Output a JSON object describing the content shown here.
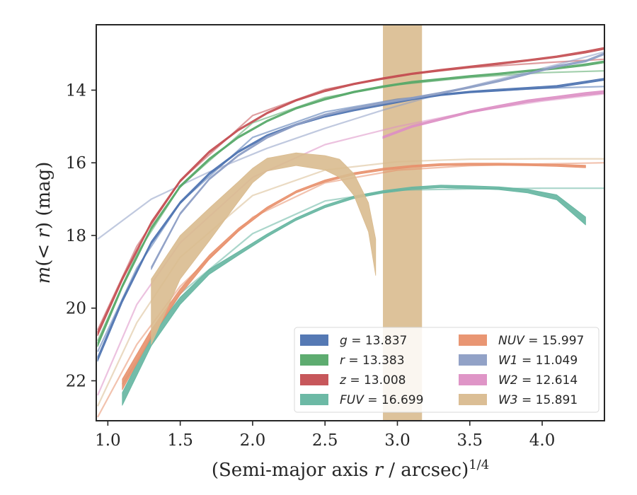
{
  "chart_data": {
    "type": "line",
    "xlabel": "(Semi-major axis r / arcsec)^1/4",
    "ylabel": "m(< r) (mag)",
    "xlim": [
      0.92,
      4.43
    ],
    "ylim": [
      23.1,
      12.2
    ],
    "y_inverted": true,
    "grid": false,
    "legend_position": "lower-right",
    "x_ticks": [
      "1.0",
      "1.5",
      "2.0",
      "2.5",
      "3.0",
      "3.5",
      "4.0"
    ],
    "y_ticks": [
      "14",
      "16",
      "18",
      "20",
      "22"
    ],
    "series": [
      {
        "name": "g = 13.837",
        "color": "#4c72b0",
        "x": [
          0.93,
          1.1,
          1.3,
          1.5,
          1.7,
          1.9,
          2.1,
          2.3,
          2.5,
          2.7,
          2.9,
          3.1,
          3.3,
          3.5,
          3.7,
          3.9,
          4.1,
          4.3,
          4.43
        ],
        "y": [
          21.4,
          19.8,
          18.2,
          17.1,
          16.3,
          15.7,
          15.25,
          14.95,
          14.72,
          14.55,
          14.4,
          14.25,
          14.13,
          14.05,
          14.0,
          13.95,
          13.9,
          13.78,
          13.7
        ],
        "width": [
          0.13,
          0.1,
          0.08,
          0.07,
          0.06,
          0.05,
          0.05,
          0.05,
          0.05,
          0.05,
          0.05,
          0.05,
          0.05,
          0.05,
          0.06,
          0.06,
          0.06,
          0.06,
          0.06
        ],
        "model_x": [
          0.93,
          1.2,
          1.5,
          2.0,
          2.5,
          3.0,
          3.5,
          4.0,
          4.43
        ],
        "model_y": [
          21.2,
          18.9,
          17.1,
          15.3,
          14.6,
          14.25,
          14.05,
          13.95,
          13.9
        ]
      },
      {
        "name": "r = 13.383",
        "color": "#55a868",
        "x": [
          0.93,
          1.1,
          1.3,
          1.5,
          1.7,
          1.9,
          2.1,
          2.3,
          2.5,
          2.7,
          2.9,
          3.1,
          3.3,
          3.5,
          3.7,
          3.9,
          4.1,
          4.3,
          4.43
        ],
        "y": [
          21.0,
          19.4,
          17.8,
          16.65,
          15.9,
          15.3,
          14.85,
          14.5,
          14.25,
          14.05,
          13.9,
          13.78,
          13.7,
          13.62,
          13.55,
          13.47,
          13.4,
          13.3,
          13.22
        ],
        "width": [
          0.12,
          0.1,
          0.08,
          0.07,
          0.06,
          0.05,
          0.05,
          0.05,
          0.05,
          0.05,
          0.05,
          0.05,
          0.05,
          0.05,
          0.05,
          0.05,
          0.05,
          0.06,
          0.06
        ],
        "model_x": [
          0.93,
          1.2,
          1.5,
          2.0,
          2.5,
          3.0,
          3.5,
          4.0,
          4.43
        ],
        "model_y": [
          20.9,
          18.5,
          16.65,
          14.9,
          14.2,
          13.85,
          13.65,
          13.52,
          13.47
        ]
      },
      {
        "name": "z = 13.008",
        "color": "#c44e52",
        "x": [
          0.93,
          1.1,
          1.3,
          1.5,
          1.7,
          1.9,
          2.1,
          2.3,
          2.5,
          2.7,
          2.9,
          3.1,
          3.3,
          3.5,
          3.7,
          3.9,
          4.1,
          4.3,
          4.43
        ],
        "y": [
          20.7,
          19.2,
          17.65,
          16.5,
          15.7,
          15.1,
          14.63,
          14.28,
          14.02,
          13.83,
          13.68,
          13.55,
          13.45,
          13.36,
          13.27,
          13.18,
          13.08,
          12.95,
          12.85
        ],
        "width": [
          0.12,
          0.1,
          0.08,
          0.07,
          0.06,
          0.05,
          0.05,
          0.05,
          0.05,
          0.05,
          0.05,
          0.05,
          0.05,
          0.05,
          0.05,
          0.05,
          0.05,
          0.06,
          0.06
        ],
        "model_x": [
          0.93,
          1.2,
          1.5,
          2.0,
          2.5,
          3.0,
          3.5,
          4.0,
          4.43
        ],
        "model_y": [
          20.6,
          18.3,
          16.5,
          14.7,
          13.98,
          13.6,
          13.38,
          13.25,
          13.15
        ]
      },
      {
        "name": "FUV = 16.699",
        "color": "#64b5a0",
        "x": [
          1.1,
          1.3,
          1.5,
          1.7,
          1.9,
          2.1,
          2.3,
          2.5,
          2.7,
          2.9,
          3.1,
          3.3,
          3.5,
          3.7,
          3.9,
          4.1,
          4.3
        ],
        "y": [
          22.5,
          20.9,
          19.8,
          19.0,
          18.5,
          18.0,
          17.55,
          17.2,
          16.95,
          16.8,
          16.7,
          16.65,
          16.67,
          16.7,
          16.78,
          16.95,
          17.6
        ],
        "width": [
          0.35,
          0.28,
          0.2,
          0.14,
          0.1,
          0.08,
          0.07,
          0.07,
          0.07,
          0.07,
          0.07,
          0.07,
          0.08,
          0.08,
          0.1,
          0.14,
          0.22
        ],
        "model_x": [
          1.1,
          1.5,
          2.0,
          2.5,
          3.0,
          3.5,
          4.0,
          4.43
        ],
        "model_y": [
          22.1,
          19.6,
          17.95,
          17.05,
          16.75,
          16.72,
          16.7,
          16.7
        ]
      },
      {
        "name": "NUV = 15.997",
        "color": "#e8906c",
        "x": [
          1.1,
          1.3,
          1.5,
          1.7,
          1.9,
          2.1,
          2.3,
          2.5,
          2.7,
          2.9,
          3.1,
          3.3,
          3.5,
          3.7,
          3.9,
          4.1,
          4.3
        ],
        "y": [
          22.1,
          20.7,
          19.55,
          18.6,
          17.85,
          17.25,
          16.8,
          16.5,
          16.3,
          16.18,
          16.1,
          16.05,
          16.04,
          16.04,
          16.05,
          16.07,
          16.1
        ],
        "width": [
          0.3,
          0.22,
          0.16,
          0.12,
          0.09,
          0.07,
          0.06,
          0.06,
          0.06,
          0.06,
          0.06,
          0.06,
          0.06,
          0.06,
          0.06,
          0.06,
          0.07
        ],
        "model_x": [
          0.93,
          1.2,
          1.5,
          2.0,
          2.5,
          3.0,
          3.5,
          4.0,
          4.43
        ],
        "model_y": [
          23.0,
          21.0,
          19.4,
          17.5,
          16.55,
          16.2,
          16.08,
          16.03,
          16.0
        ]
      },
      {
        "name": "W1 = 11.049",
        "color": "#8c9dc4",
        "x": [
          1.3,
          1.5,
          1.7,
          1.9,
          2.1,
          2.3,
          2.5,
          2.7,
          2.9,
          3.1,
          3.3,
          3.5,
          3.7,
          3.9,
          4.1,
          4.3,
          4.43
        ],
        "y": [
          18.9,
          17.4,
          16.45,
          15.8,
          15.3,
          14.95,
          14.68,
          14.5,
          14.35,
          14.22,
          14.08,
          13.92,
          13.75,
          13.55,
          13.35,
          13.2,
          13.0
        ],
        "width": [
          0.08,
          0.06,
          0.05,
          0.05,
          0.05,
          0.05,
          0.05,
          0.05,
          0.05,
          0.05,
          0.05,
          0.05,
          0.05,
          0.05,
          0.05,
          0.05,
          0.05
        ],
        "model_x": [
          0.93,
          1.3,
          1.7,
          2.1,
          2.5,
          2.9,
          3.3,
          3.7,
          4.1,
          4.43
        ],
        "model_y": [
          18.1,
          17.0,
          16.25,
          15.6,
          15.05,
          14.55,
          14.1,
          13.7,
          13.3,
          12.95
        ]
      },
      {
        "name": "W2 = 12.614",
        "color": "#dd8fc4",
        "x": [
          2.9,
          3.1,
          3.3,
          3.5,
          3.7,
          3.9,
          4.1,
          4.3,
          4.43
        ],
        "y": [
          15.3,
          15.0,
          14.8,
          14.6,
          14.45,
          14.3,
          14.2,
          14.1,
          14.05
        ],
        "width": [
          0.06,
          0.06,
          0.06,
          0.06,
          0.07,
          0.07,
          0.07,
          0.08,
          0.08
        ],
        "model_x": [
          0.93,
          1.2,
          1.5,
          2.0,
          2.5,
          3.0,
          3.5,
          4.0,
          4.43
        ],
        "model_y": [
          22.4,
          19.9,
          18.2,
          16.4,
          15.5,
          15.0,
          14.6,
          14.3,
          14.1
        ]
      },
      {
        "name": "W3 = 15.891",
        "color": "#d9bb8f",
        "x": [
          1.3,
          1.5,
          1.7,
          1.9,
          2.0,
          2.1,
          2.3,
          2.5,
          2.6,
          2.7,
          2.8,
          2.85
        ],
        "y": [
          20.1,
          18.6,
          17.7,
          16.8,
          16.35,
          16.05,
          15.9,
          16.0,
          16.15,
          16.6,
          17.5,
          18.6
        ],
        "width": [
          1.8,
          1.2,
          0.9,
          0.55,
          0.4,
          0.35,
          0.35,
          0.4,
          0.5,
          0.6,
          0.8,
          1.0
        ],
        "vband_x": [
          2.9,
          3.17
        ],
        "model_x": [
          0.93,
          1.2,
          1.5,
          2.0,
          2.5,
          3.0,
          3.5,
          4.0,
          4.43
        ],
        "model_y": [
          22.7,
          20.4,
          18.6,
          16.9,
          16.2,
          15.97,
          15.9,
          15.89,
          15.89
        ]
      }
    ]
  }
}
